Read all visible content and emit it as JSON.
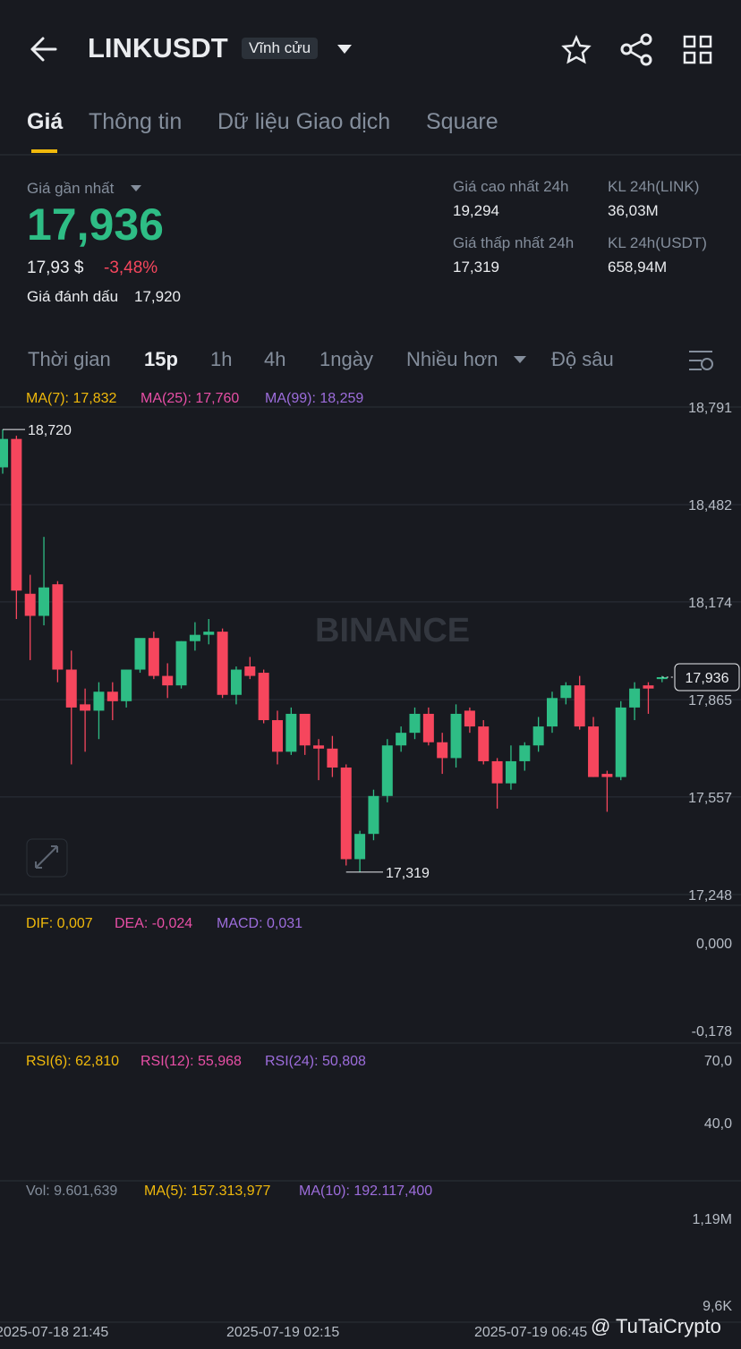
{
  "header": {
    "symbol": "LINKUSDT",
    "badge": "Vĩnh cửu"
  },
  "tabs": [
    "Giá",
    "Thông tin",
    "Dữ liệu Giao dịch",
    "Square"
  ],
  "price": {
    "last_label": "Giá gần nhất",
    "last": "17,936",
    "usd": "17,93 $",
    "change": "-3,48%",
    "mark_label": "Giá đánh dấu",
    "mark": "17,920"
  },
  "stats": [
    {
      "label": "Giá cao nhất 24h",
      "value": "19,294"
    },
    {
      "label": "KL 24h(LINK)",
      "value": "36,03M"
    },
    {
      "label": "Giá thấp nhất 24h",
      "value": "17,319"
    },
    {
      "label": "KL 24h(USDT)",
      "value": "658,94M"
    }
  ],
  "intervals": [
    "Thời gian",
    "15p",
    "1h",
    "4h",
    "1ngày",
    "Nhiều hơn",
    "Độ sâu"
  ],
  "chart_data": {
    "type": "candlestick",
    "watermark": "BINANCE",
    "ma_labels": [
      "MA(7): 17,832",
      "MA(25): 17,760",
      "MA(99): 18,259"
    ],
    "ylim": [
      17.248,
      18.791
    ],
    "yticks": [
      {
        "value": 18.791,
        "label": "18,791"
      },
      {
        "value": 18.482,
        "label": "18,482"
      },
      {
        "value": 18.174,
        "label": "18,174"
      },
      {
        "value": 17.865,
        "label": "17,865"
      },
      {
        "value": 17.557,
        "label": "17,557"
      },
      {
        "value": 17.248,
        "label": "17,248"
      }
    ],
    "high": {
      "value": 18.72,
      "label": "18,720"
    },
    "low": {
      "value": 17.319,
      "label": "17,319"
    },
    "last": {
      "value": 17.936,
      "label": "17,936"
    },
    "up_color": "#2ebd85",
    "down_color": "#f6465d",
    "ohlc": [
      [
        18.6,
        18.72,
        18.58,
        18.69
      ],
      [
        18.69,
        18.7,
        18.12,
        18.21
      ],
      [
        18.2,
        18.26,
        17.99,
        18.13
      ],
      [
        18.13,
        18.38,
        18.1,
        18.22
      ],
      [
        18.23,
        18.24,
        17.92,
        17.96
      ],
      [
        17.96,
        18.02,
        17.66,
        17.84
      ],
      [
        17.85,
        17.9,
        17.7,
        17.83
      ],
      [
        17.83,
        17.92,
        17.74,
        17.89
      ],
      [
        17.89,
        17.92,
        17.8,
        17.86
      ],
      [
        17.86,
        17.96,
        17.84,
        17.96
      ],
      [
        17.96,
        18.05,
        17.95,
        18.06
      ],
      [
        18.06,
        18.08,
        17.93,
        17.94
      ],
      [
        17.94,
        17.98,
        17.87,
        17.91
      ],
      [
        17.91,
        18.05,
        17.9,
        18.05
      ],
      [
        18.05,
        18.11,
        18.02,
        18.07
      ],
      [
        18.07,
        18.12,
        18.04,
        18.08
      ],
      [
        18.08,
        18.09,
        17.87,
        17.88
      ],
      [
        17.88,
        17.97,
        17.85,
        17.96
      ],
      [
        17.97,
        18.0,
        17.93,
        17.94
      ],
      [
        17.95,
        17.96,
        17.79,
        17.8
      ],
      [
        17.8,
        17.83,
        17.66,
        17.7
      ],
      [
        17.7,
        17.84,
        17.69,
        17.82
      ],
      [
        17.82,
        17.82,
        17.69,
        17.72
      ],
      [
        17.72,
        17.74,
        17.61,
        17.71
      ],
      [
        17.71,
        17.75,
        17.62,
        17.65
      ],
      [
        17.65,
        17.66,
        17.34,
        17.36
      ],
      [
        17.36,
        17.45,
        17.32,
        17.44
      ],
      [
        17.44,
        17.58,
        17.42,
        17.56
      ],
      [
        17.56,
        17.74,
        17.54,
        17.72
      ],
      [
        17.72,
        17.78,
        17.7,
        17.76
      ],
      [
        17.76,
        17.84,
        17.74,
        17.82
      ],
      [
        17.82,
        17.84,
        17.72,
        17.73
      ],
      [
        17.73,
        17.76,
        17.63,
        17.68
      ],
      [
        17.68,
        17.85,
        17.65,
        17.82
      ],
      [
        17.83,
        17.84,
        17.76,
        17.78
      ],
      [
        17.78,
        17.8,
        17.66,
        17.67
      ],
      [
        17.67,
        17.68,
        17.52,
        17.6
      ],
      [
        17.6,
        17.72,
        17.58,
        17.67
      ],
      [
        17.67,
        17.73,
        17.64,
        17.72
      ],
      [
        17.72,
        17.81,
        17.7,
        17.78
      ],
      [
        17.78,
        17.89,
        17.76,
        17.87
      ],
      [
        17.87,
        17.92,
        17.85,
        17.91
      ],
      [
        17.91,
        17.94,
        17.77,
        17.78
      ],
      [
        17.78,
        17.81,
        17.62,
        17.62
      ],
      [
        17.63,
        17.64,
        17.51,
        17.62
      ],
      [
        17.62,
        17.86,
        17.61,
        17.84
      ],
      [
        17.84,
        17.92,
        17.8,
        17.9
      ],
      [
        17.91,
        17.92,
        17.82,
        17.9
      ],
      [
        17.93,
        17.94,
        17.92,
        17.936
      ]
    ]
  },
  "macd": {
    "labels": [
      "DIF: 0,007",
      "DEA: -0,024",
      "MACD: 0,031"
    ],
    "ticks": [
      "0,000",
      "-0,178"
    ]
  },
  "rsi": {
    "labels": [
      "RSI(6): 62,810",
      "RSI(12): 55,968",
      "RSI(24): 50,808"
    ],
    "ticks": [
      "70,0",
      "40,0"
    ]
  },
  "volume": {
    "labels": [
      "Vol: 9.601,639",
      "MA(5): 157.313,977",
      "MA(10): 192.117,400"
    ],
    "ticks": [
      "1,19M",
      "9,6K"
    ]
  },
  "dates": [
    "2025-07-18 21:45",
    "2025-07-19 02:15",
    "2025-07-19 06:45"
  ],
  "footer": "@ TuTaiCrypto"
}
